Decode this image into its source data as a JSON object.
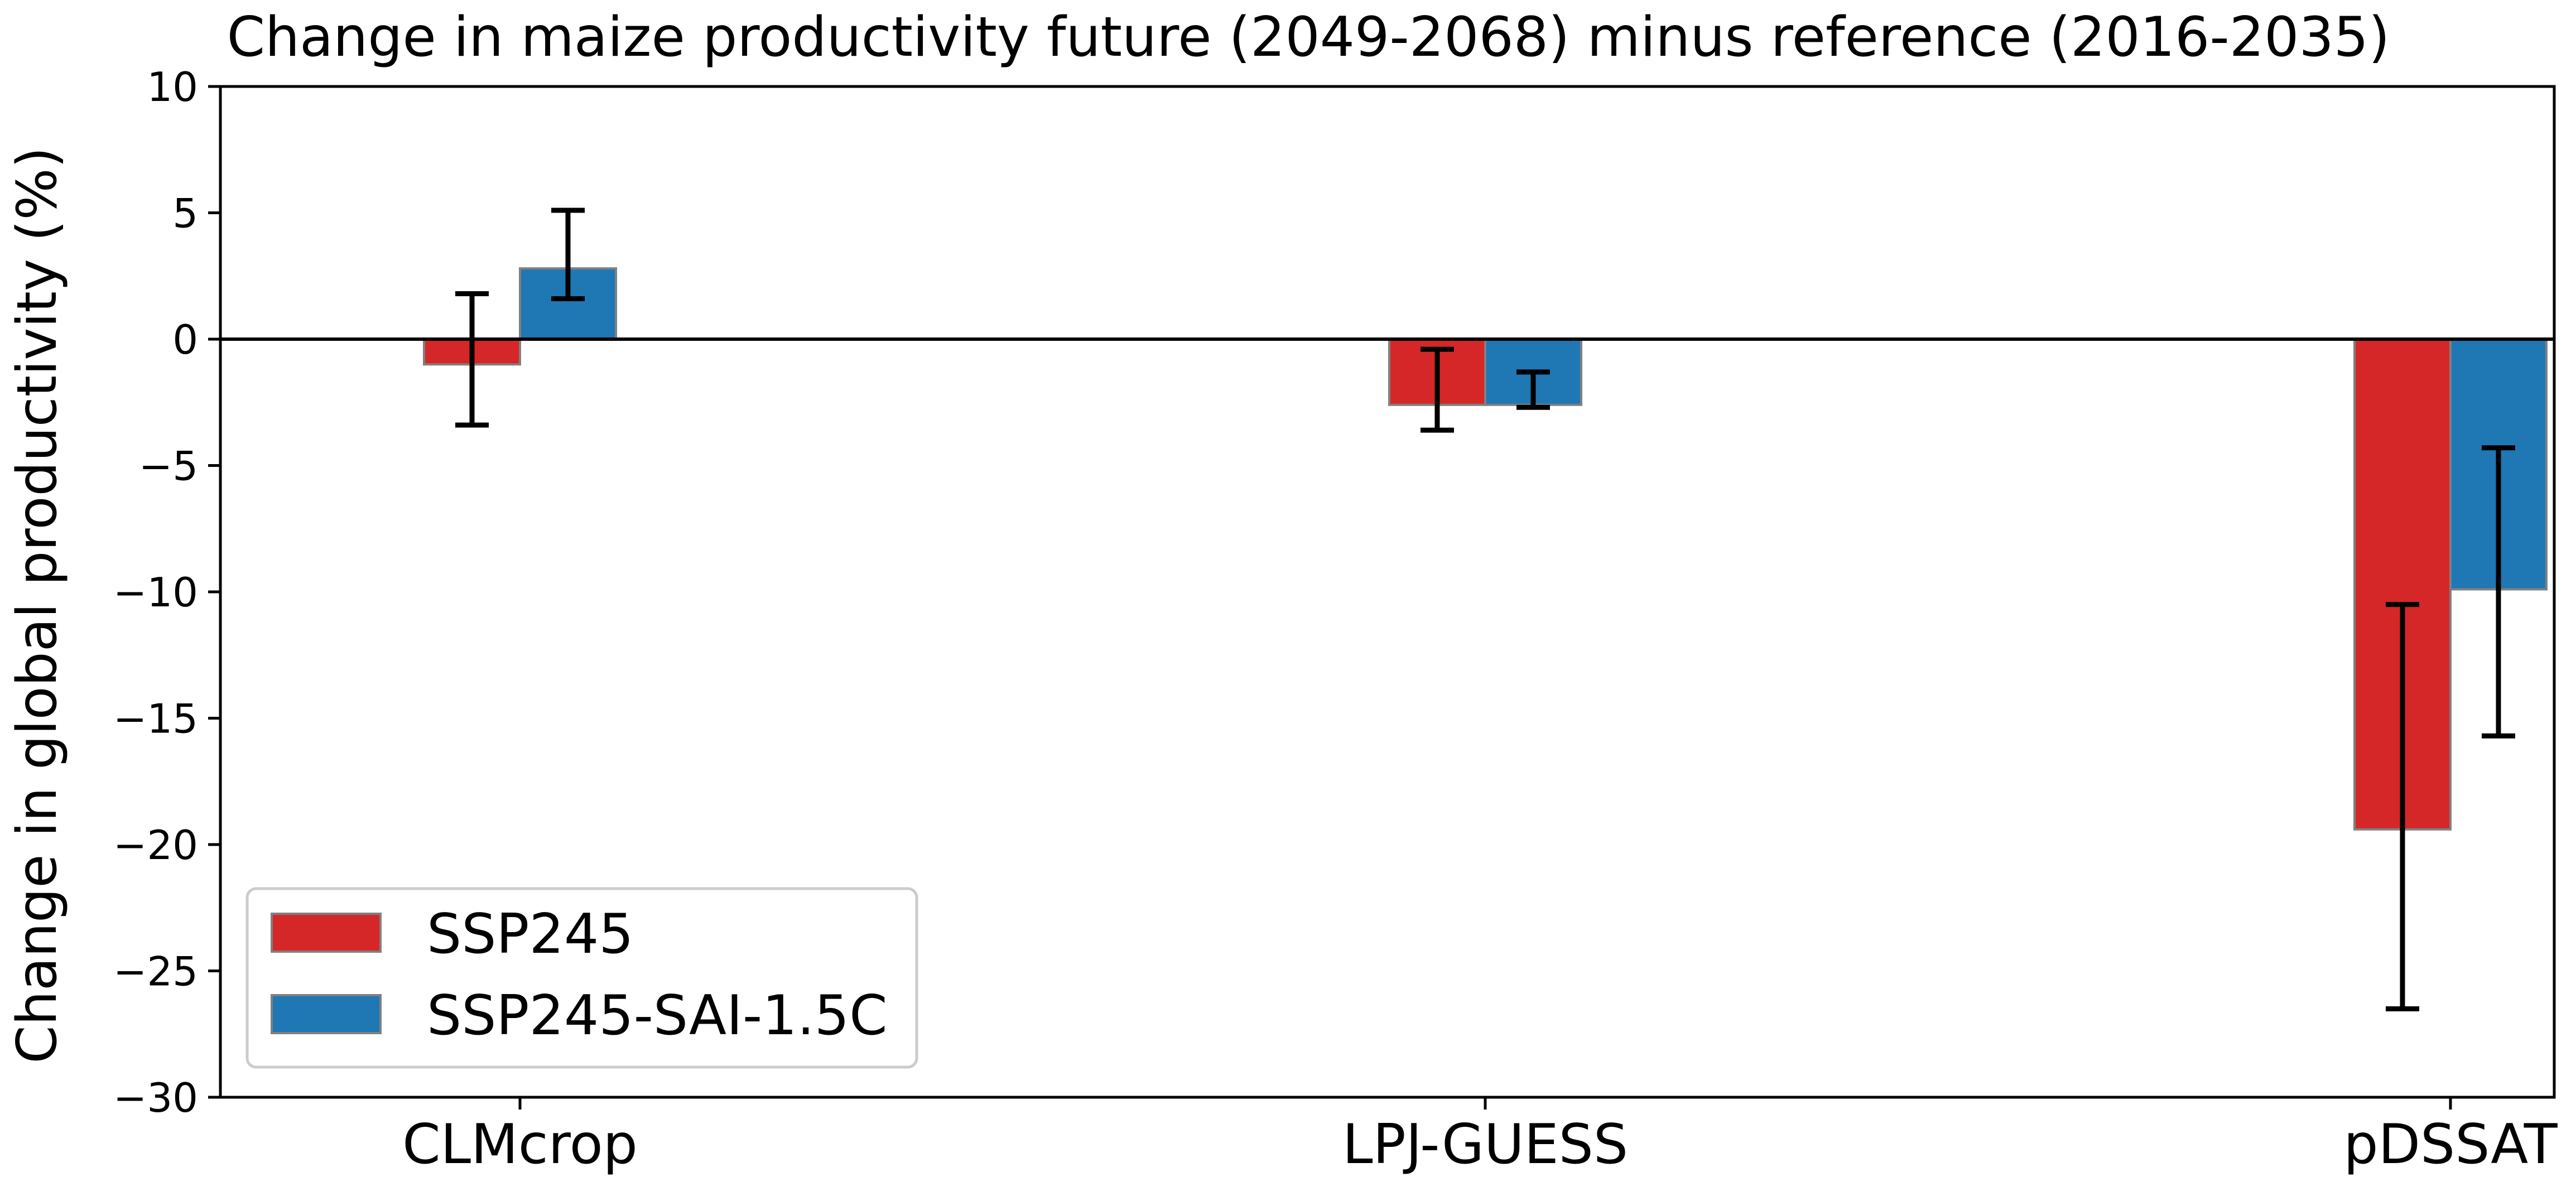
{
  "chart_data": {
    "type": "bar",
    "title": "Change in maize productivity future (2049-2068) minus reference (2016-2035)",
    "xlabel": "",
    "ylabel": "Change in global productivity (%)",
    "ylim": [
      -30,
      10
    ],
    "yticks": [
      10,
      5,
      0,
      -5,
      -10,
      -15,
      -20,
      -25,
      -30
    ],
    "ytick_labels": [
      "10",
      "5",
      "0",
      "−5",
      "−10",
      "−15",
      "−20",
      "−25",
      "−30"
    ],
    "categories": [
      "CLMcrop",
      "LPJ-GUESS",
      "pDSSAT"
    ],
    "zero_line": true,
    "grid": false,
    "legend_position": "lower-left",
    "series": [
      {
        "name": "SSP245",
        "color": "#d62728",
        "values": [
          -1.0,
          -2.6,
          -19.4
        ],
        "err_low": [
          -3.4,
          -3.6,
          -26.5
        ],
        "err_high": [
          1.8,
          -0.4,
          -10.5
        ]
      },
      {
        "name": "SSP245-SAI-1.5C",
        "color": "#1f77b4",
        "values": [
          2.8,
          -2.6,
          -9.9
        ],
        "err_low": [
          1.6,
          -2.7,
          -15.7
        ],
        "err_high": [
          5.1,
          -1.3,
          -4.3
        ]
      }
    ]
  }
}
